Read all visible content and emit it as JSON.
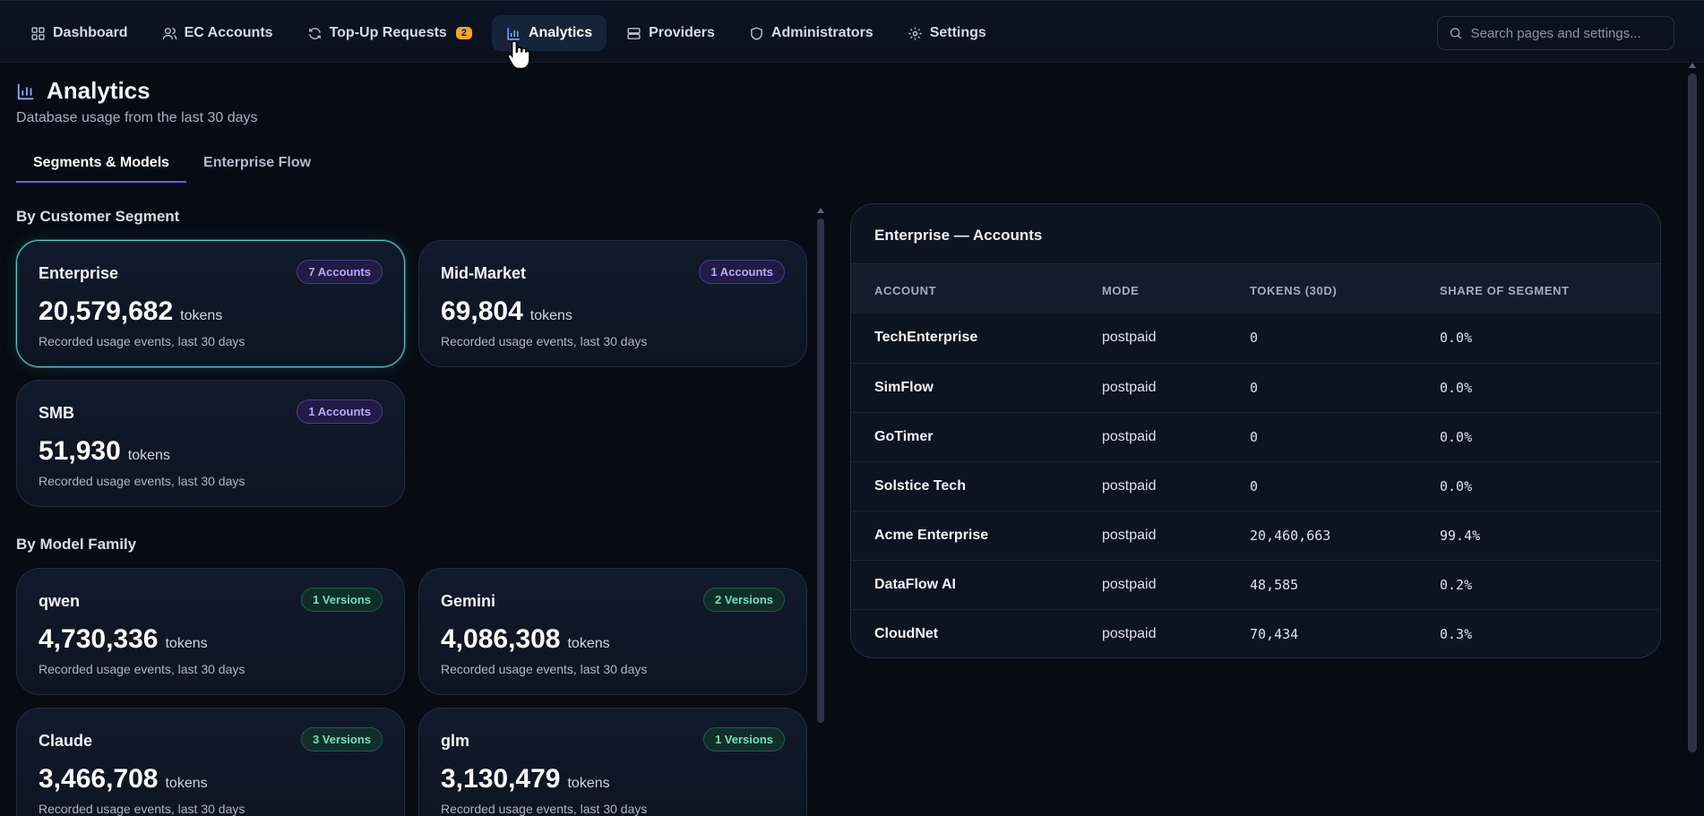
{
  "nav": {
    "items": [
      {
        "label": "Dashboard",
        "icon": "dashboard-icon"
      },
      {
        "label": "EC Accounts",
        "icon": "users-icon"
      },
      {
        "label": "Top-Up Requests",
        "icon": "refresh-icon",
        "badge": "2"
      },
      {
        "label": "Analytics",
        "icon": "bar-chart-icon",
        "active": true
      },
      {
        "label": "Providers",
        "icon": "server-icon"
      },
      {
        "label": "Administrators",
        "icon": "shield-icon"
      },
      {
        "label": "Settings",
        "icon": "gear-icon"
      }
    ],
    "search_placeholder": "Search pages and settings..."
  },
  "page": {
    "title": "Analytics",
    "subtitle": "Database usage from the last 30 days"
  },
  "tabs": [
    {
      "label": "Segments & Models",
      "active": true
    },
    {
      "label": "Enterprise Flow",
      "active": false
    }
  ],
  "segments": {
    "label": "By Customer Segment",
    "cards": [
      {
        "name": "Enterprise",
        "badge": "7 Accounts",
        "value": "20,579,682",
        "unit": "tokens",
        "desc": "Recorded usage events, last 30 days",
        "selected": true
      },
      {
        "name": "Mid-Market",
        "badge": "1 Accounts",
        "value": "69,804",
        "unit": "tokens",
        "desc": "Recorded usage events, last 30 days"
      },
      {
        "name": "SMB",
        "badge": "1 Accounts",
        "value": "51,930",
        "unit": "tokens",
        "desc": "Recorded usage events, last 30 days"
      }
    ]
  },
  "models": {
    "label": "By Model Family",
    "cards": [
      {
        "name": "qwen",
        "badge": "1 Versions",
        "value": "4,730,336",
        "unit": "tokens",
        "desc": "Recorded usage events, last 30 days"
      },
      {
        "name": "Gemini",
        "badge": "2 Versions",
        "value": "4,086,308",
        "unit": "tokens",
        "desc": "Recorded usage events, last 30 days"
      },
      {
        "name": "Claude",
        "badge": "3 Versions",
        "value": "3,466,708",
        "unit": "tokens",
        "desc": "Recorded usage events, last 30 days"
      },
      {
        "name": "glm",
        "badge": "1 Versions",
        "value": "3,130,479",
        "unit": "tokens",
        "desc": "Recorded usage events, last 30 days"
      }
    ]
  },
  "accounts_panel": {
    "title": "Enterprise — Accounts",
    "columns": [
      "ACCOUNT",
      "MODE",
      "TOKENS (30D)",
      "SHARE OF SEGMENT"
    ],
    "rows": [
      {
        "account": "TechEnterprise",
        "mode": "postpaid",
        "tokens": "0",
        "share": "0.0%"
      },
      {
        "account": "SimFlow",
        "mode": "postpaid",
        "tokens": "0",
        "share": "0.0%"
      },
      {
        "account": "GoTimer",
        "mode": "postpaid",
        "tokens": "0",
        "share": "0.0%"
      },
      {
        "account": "Solstice Tech",
        "mode": "postpaid",
        "tokens": "0",
        "share": "0.0%"
      },
      {
        "account": "Acme Enterprise",
        "mode": "postpaid",
        "tokens": "20,460,663",
        "share": "99.4%"
      },
      {
        "account": "DataFlow AI",
        "mode": "postpaid",
        "tokens": "48,585",
        "share": "0.2%"
      },
      {
        "account": "CloudNet",
        "mode": "postpaid",
        "tokens": "70,434",
        "share": "0.3%"
      }
    ]
  },
  "colors": {
    "background": "#070b14",
    "accent_teal": "#4fd1c5",
    "accent_purple": "#6e5cf0",
    "badge_orange": "#f5a623"
  }
}
